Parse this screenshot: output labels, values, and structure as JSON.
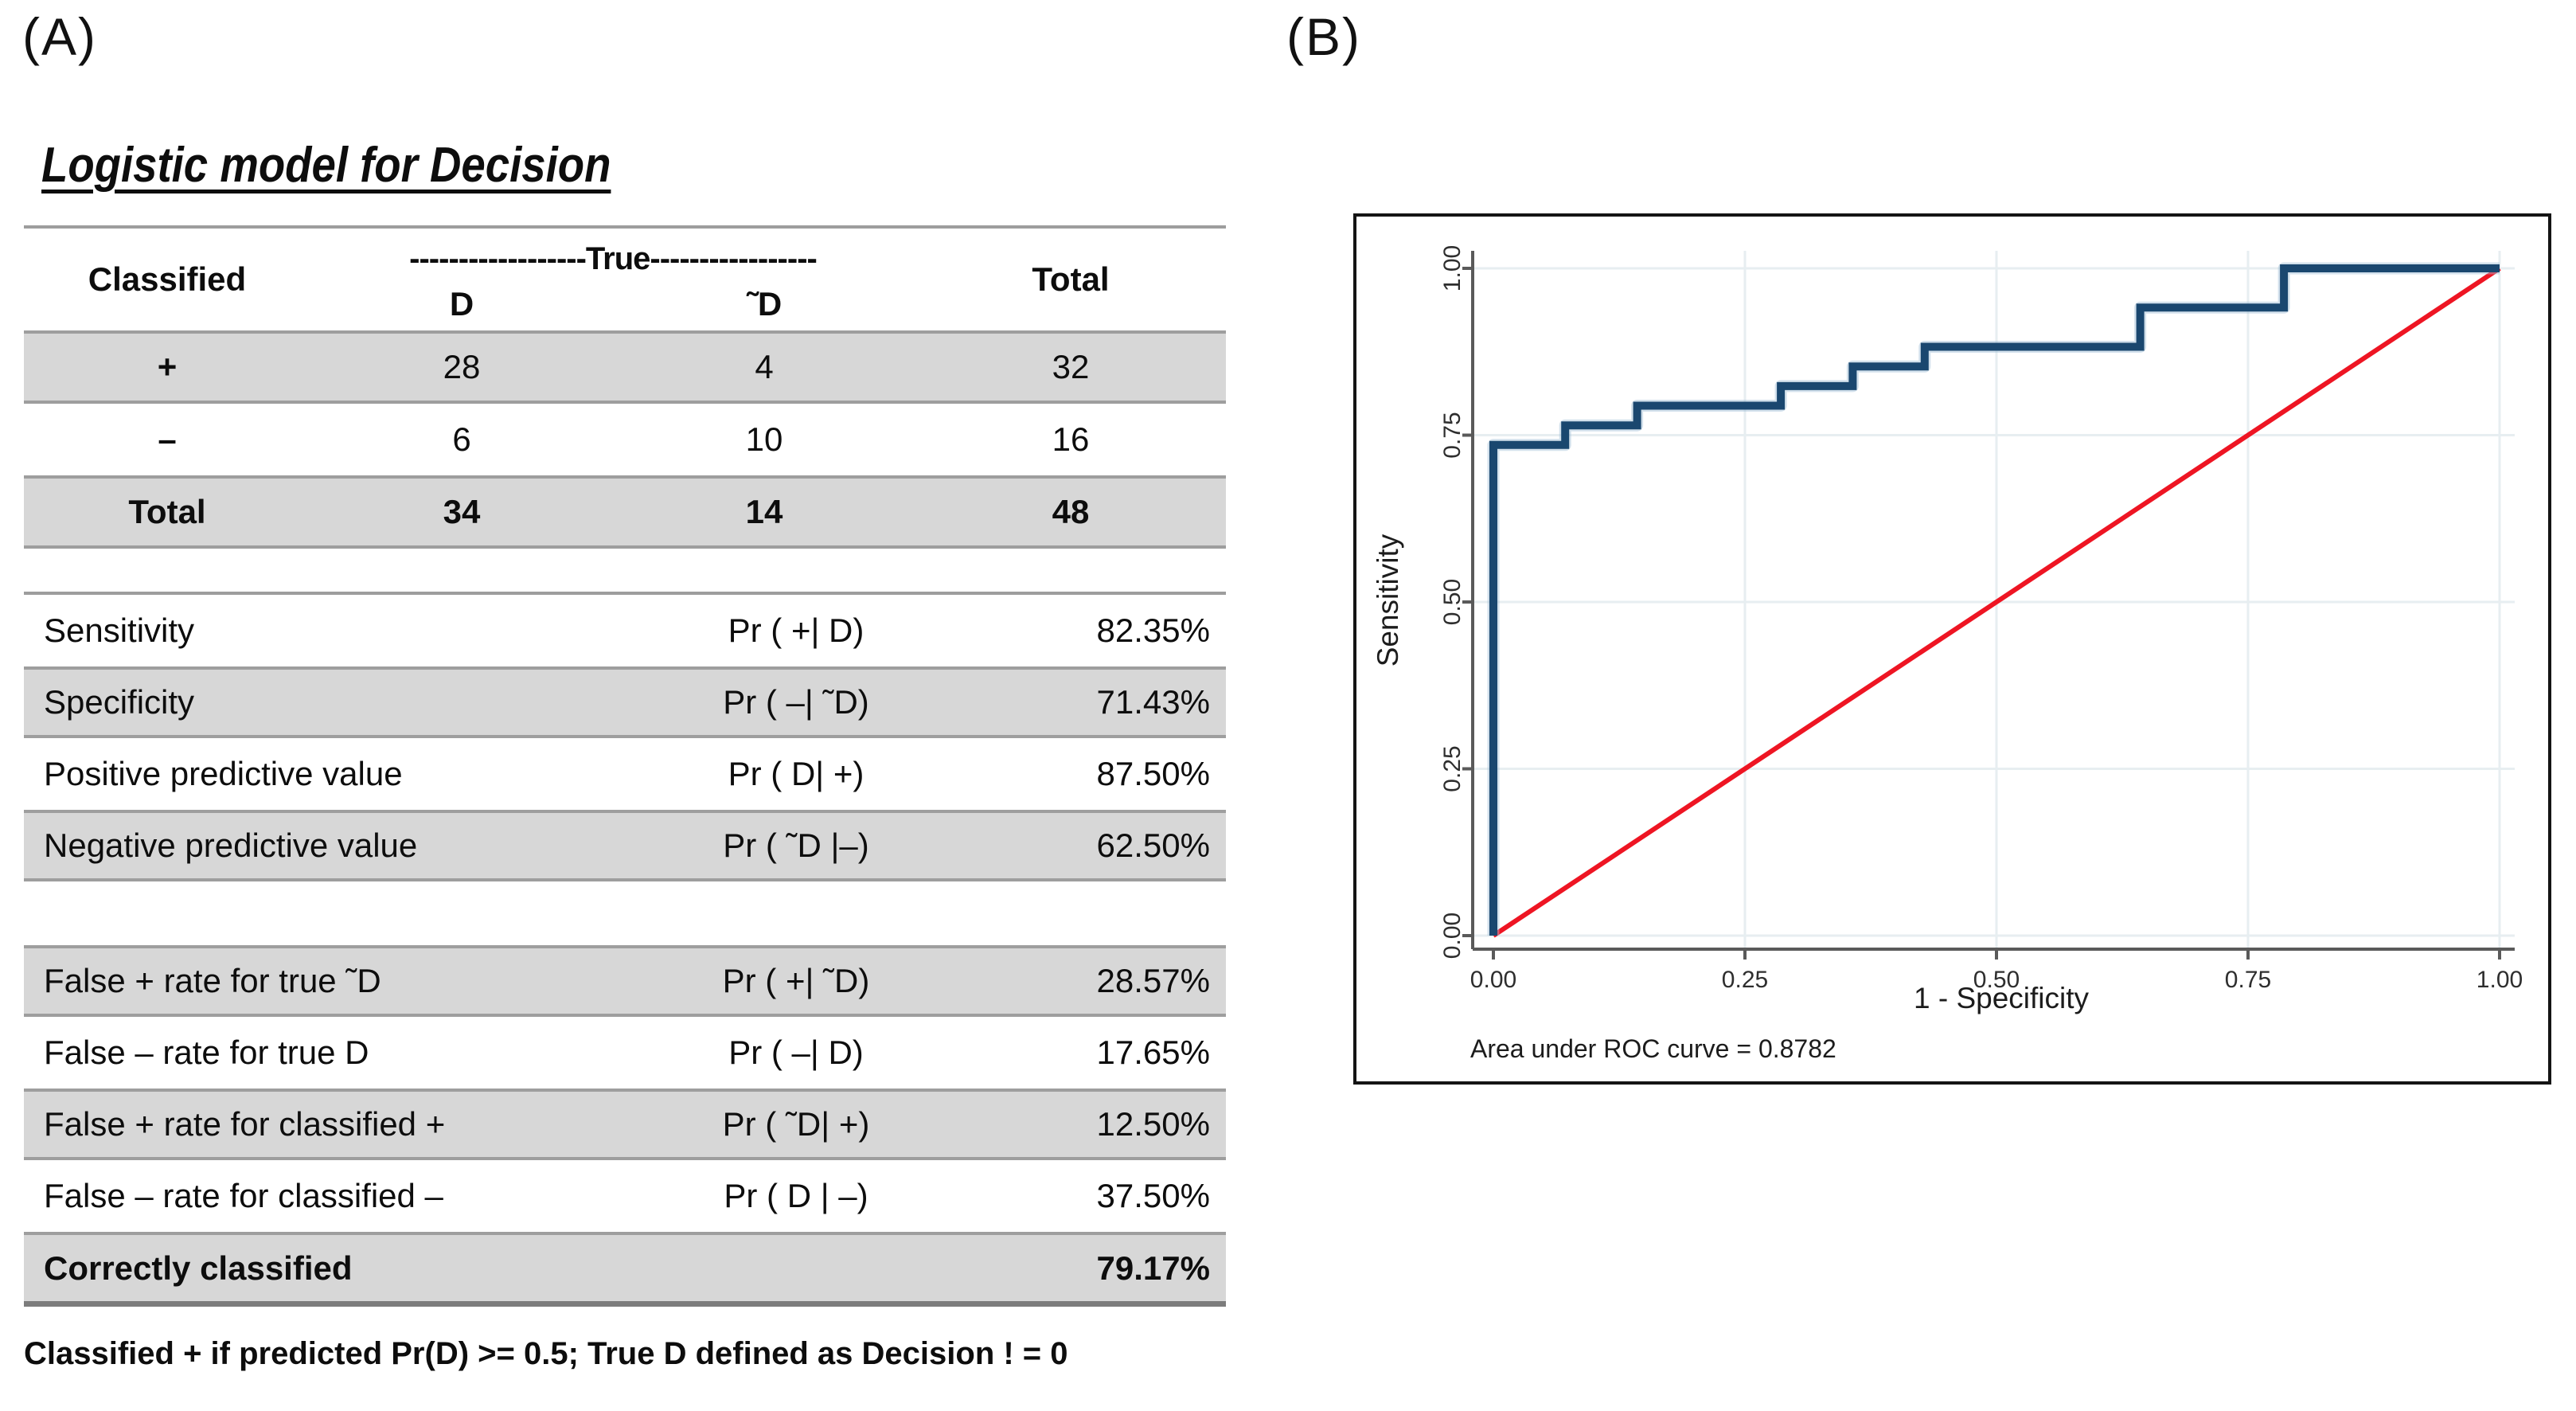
{
  "figure": {
    "panel_a_label": "(A)",
    "panel_b_label": "(B)"
  },
  "table_title": "Logistic model for Decision",
  "class_table": {
    "header": {
      "classified": "Classified",
      "true_span": "------------------True-----------------",
      "d": "D",
      "nd": "˜D",
      "total": "Total"
    },
    "rows": [
      {
        "label": "+",
        "d": "28",
        "nd": "4",
        "total": "32"
      },
      {
        "label": "–",
        "d": "6",
        "nd": "10",
        "total": "16"
      },
      {
        "label": "Total",
        "d": "34",
        "nd": "14",
        "total": "48"
      }
    ]
  },
  "stats": {
    "rows1": [
      {
        "label": "Sensitivity",
        "formula": "Pr ( +| D)",
        "value": "82.35%"
      },
      {
        "label": "Specificity",
        "formula": "Pr ( –| ˜D)",
        "value": "71.43%"
      },
      {
        "label": "Positive predictive value",
        "formula": "Pr ( D| +)",
        "value": "87.50%"
      },
      {
        "label": "Negative predictive value",
        "formula": "Pr ( ˜D |–)",
        "value": "62.50%"
      }
    ],
    "rows2": [
      {
        "label": "False + rate for true ˜D",
        "formula": "Pr ( +| ˜D)",
        "value": "28.57%"
      },
      {
        "label": "False – rate for true D",
        "formula": "Pr ( –| D)",
        "value": "17.65%"
      },
      {
        "label": "False + rate for classified +",
        "formula": "Pr ( ˜D| +)",
        "value": "12.50%"
      },
      {
        "label": "False – rate for classified –",
        "formula": "Pr ( D | –)",
        "value": "37.50%"
      }
    ],
    "rows3": [
      {
        "label": "Correctly classified",
        "formula": "",
        "value": "79.17%"
      }
    ]
  },
  "footer_note": "Classified + if predicted Pr(D) >= 0.5; True D defined as Decision ! = 0",
  "chart_data": {
    "type": "line",
    "title": "",
    "xlabel": "1 - Specificity",
    "ylabel": "Sensitivity",
    "xlim": [
      0,
      1
    ],
    "ylim": [
      0,
      1
    ],
    "grid": true,
    "xticks": [
      0,
      0.25,
      0.5,
      0.75,
      1
    ],
    "yticks": [
      0,
      0.25,
      0.5,
      0.75,
      1
    ],
    "xtick_labels": [
      "0.00",
      "0.25",
      "0.50",
      "0.75",
      "1.00"
    ],
    "ytick_labels": [
      "0.00",
      "0.25",
      "0.50",
      "0.75",
      "1.00"
    ],
    "annotation": "Area under ROC curve = 0.8782",
    "auc": 0.8782,
    "colors": {
      "roc": "#1a476f",
      "roc_halo": "#9dbdd4",
      "reference": "#ee1523",
      "grid": "#e7eef1",
      "axis": "#5a5a5a"
    },
    "series": [
      {
        "name": "ROC curve",
        "color": "#1a476f",
        "points": [
          [
            0,
            0
          ],
          [
            0,
            0.7353
          ],
          [
            0.0714,
            0.7353
          ],
          [
            0.0714,
            0.7647
          ],
          [
            0.1429,
            0.7647
          ],
          [
            0.1429,
            0.7941
          ],
          [
            0.2857,
            0.7941
          ],
          [
            0.2857,
            0.8235
          ],
          [
            0.3571,
            0.8235
          ],
          [
            0.3571,
            0.8529
          ],
          [
            0.4286,
            0.8529
          ],
          [
            0.4286,
            0.8824
          ],
          [
            0.6429,
            0.8824
          ],
          [
            0.6429,
            0.9412
          ],
          [
            0.7857,
            0.9412
          ],
          [
            0.7857,
            1
          ],
          [
            1,
            1
          ]
        ]
      },
      {
        "name": "reference diagonal",
        "color": "#ee1523",
        "points": [
          [
            0,
            0
          ],
          [
            1,
            1
          ]
        ]
      }
    ]
  }
}
